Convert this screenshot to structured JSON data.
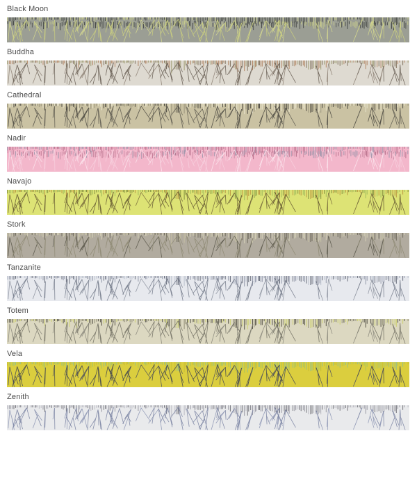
{
  "page": {
    "background": "#ffffff"
  },
  "bands": [
    {
      "label": "Black Moon",
      "background": "#9b9e94",
      "ticks": [
        "#515550",
        "#3f423f",
        "#c9cd8c"
      ],
      "branches": [
        "#d7db90",
        "#cdd27e"
      ],
      "dense_ticks": true
    },
    {
      "label": "Buddha",
      "background": "#dedad1",
      "ticks": [
        "#b0805c",
        "#7a6a55",
        "#9b9a6e"
      ],
      "branches": [
        "#8b7e72",
        "#63594f"
      ],
      "dense_ticks": false
    },
    {
      "label": "Cathedral",
      "background": "#cac2a3",
      "ticks": [
        "#eae6ce",
        "#403e37",
        "#97917a"
      ],
      "branches": [
        "#45433c",
        "#5c594e"
      ],
      "dense_ticks": false
    },
    {
      "label": "Nadir",
      "background": "#f3b7cb",
      "ticks": [
        "#b56d89",
        "#ca8aa3",
        "#9b94a9"
      ],
      "branches": [
        "#fce8ef",
        "#f7d2df"
      ],
      "dense_ticks": true
    },
    {
      "label": "Navajo",
      "background": "#dde375",
      "ticks": [
        "#9cb85c",
        "#b8923f",
        "#7d8a3c"
      ],
      "branches": [
        "#74663a",
        "#615430"
      ],
      "dense_ticks": false
    },
    {
      "label": "Stork",
      "background": "#b1ab9f",
      "ticks": [
        "#d8d4b9",
        "#6b6759",
        "#c4c0a3"
      ],
      "branches": [
        "#575448",
        "#8e8a74"
      ],
      "dense_ticks": false
    },
    {
      "label": "Tanzanite",
      "background": "#e7e9ee",
      "ticks": [
        "#8e94a5",
        "#5d6271",
        "#b9becb"
      ],
      "branches": [
        "#8a8f9c",
        "#707686"
      ],
      "dense_ticks": false
    },
    {
      "label": "Totem",
      "background": "#dcd8c1",
      "ticks": [
        "#4b493f",
        "#ccd06c",
        "#8b8971"
      ],
      "branches": [
        "#87857a",
        "#6f6d61"
      ],
      "dense_ticks": false
    },
    {
      "label": "Vela",
      "background": "#dbce3e",
      "ticks": [
        "#a8c460",
        "#90bf90",
        "#c7bd35"
      ],
      "branches": [
        "#4b4f5d",
        "#3e4251"
      ],
      "dense_ticks": false
    },
    {
      "label": "Zenith",
      "background": "#e9eaec",
      "ticks": [
        "#94949d",
        "#6b6b73",
        "#b8b8c1"
      ],
      "branches": [
        "#8b94b3",
        "#7781a0"
      ],
      "dense_ticks": false
    }
  ]
}
